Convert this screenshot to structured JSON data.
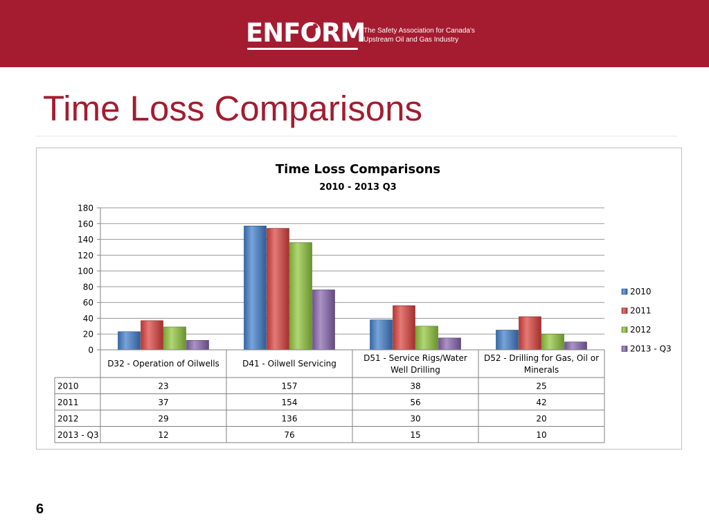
{
  "header": {
    "logo_text": "ENFORM",
    "tagline_line1": "The Safety Association for Canada's",
    "tagline_line2": "Upstream Oil and Gas Industry",
    "colors": {
      "band": "#a51b30",
      "title": "#a51b30"
    },
    "icons": [
      "maple-leaf-icon"
    ]
  },
  "slide": {
    "title": "Time Loss Comparisons",
    "page_number": "6"
  },
  "chart_data": {
    "type": "bar",
    "title": "Time Loss Comparisons",
    "subtitle": "2010 - 2013 Q3",
    "categories": [
      "D32 - Operation of Oilwells",
      "D41 - Oilwell Servicing",
      "D51 - Service Rigs/Water Well Drilling",
      "D52 - Drilling for Gas, Oil or Minerals"
    ],
    "category_label_lines": [
      [
        "D32 - Operation of Oilwells"
      ],
      [
        "D41 - Oilwell Servicing"
      ],
      [
        "D51 - Service Rigs/Water",
        "Well Drilling"
      ],
      [
        "D52 - Drilling for Gas, Oil or",
        "Minerals"
      ]
    ],
    "series": [
      {
        "name": "2010",
        "values": [
          23,
          157,
          38,
          25
        ],
        "color": "#3e7cc8"
      },
      {
        "name": "2011",
        "values": [
          37,
          154,
          56,
          42
        ],
        "color": "#d9403b"
      },
      {
        "name": "2012",
        "values": [
          29,
          136,
          30,
          20
        ],
        "color": "#8fc43a"
      },
      {
        "name": "2013 - Q3",
        "values": [
          12,
          76,
          15,
          10
        ],
        "color": "#8563ad"
      }
    ],
    "ylim": [
      0,
      180
    ],
    "yticks": [
      0,
      20,
      40,
      60,
      80,
      100,
      120,
      140,
      160,
      180
    ],
    "grid": true,
    "legend_position": "right",
    "data_table": true
  }
}
